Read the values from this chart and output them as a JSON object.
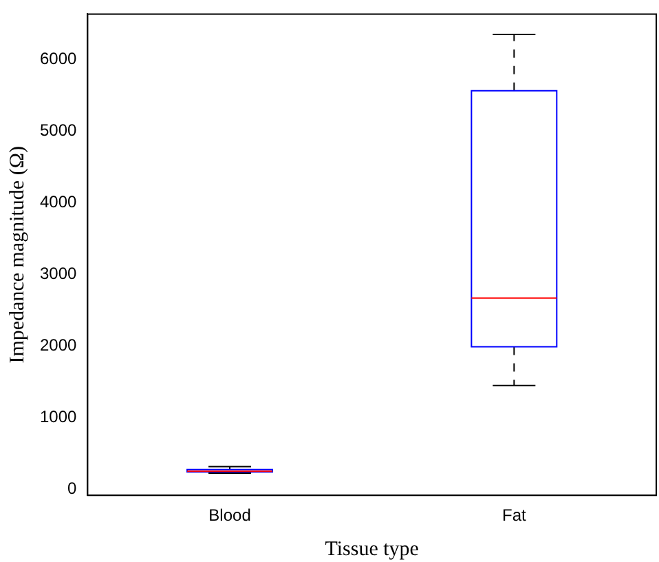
{
  "chart_data": {
    "type": "box",
    "xlabel": "Tissue type",
    "ylabel": "Impedance magnitude (Ω)",
    "categories": [
      "Blood",
      "Fat"
    ],
    "color": "#0000ff",
    "boxes": [
      {
        "low": 230,
        "q1": 245,
        "median": 255,
        "q3": 280,
        "high": 320
      },
      {
        "low": 1450,
        "q1": 1990,
        "median": 2670,
        "q3": 5560,
        "high": 6345
      }
    ],
    "ylim": [
      -80,
      6630
    ],
    "yticks": [
      0,
      1000,
      2000,
      3000,
      4000,
      5000,
      6000
    ],
    "grid": false
  }
}
